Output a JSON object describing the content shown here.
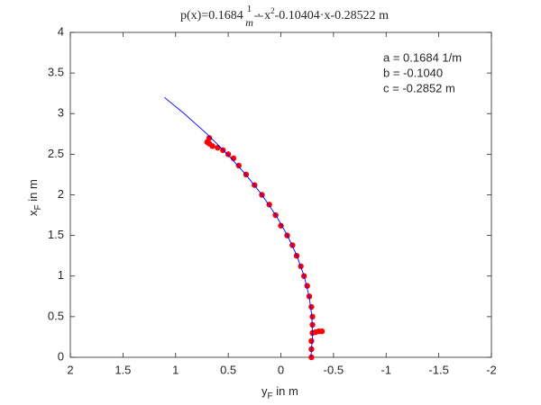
{
  "chart_data": {
    "type": "line",
    "title_parts": [
      "p(x)=0.1684",
      "1",
      "m",
      "· x",
      "2",
      "-0.10404·x-0.28522 m"
    ],
    "xlabel": {
      "main": "y",
      "sub": "F",
      "rest": " in m"
    },
    "ylabel": {
      "main": "x",
      "sub": "F",
      "rest": " in m"
    },
    "annotations": [
      "a = 0.1684 1/m",
      "b = -0.1040",
      "c = -0.2852 m"
    ],
    "xlim": [
      2,
      -2
    ],
    "ylim": [
      0,
      4
    ],
    "xticks": [
      2,
      1.5,
      1,
      0.5,
      0,
      -0.5,
      -1,
      -1.5,
      -2
    ],
    "yticks": [
      0,
      0.5,
      1,
      1.5,
      2,
      2.5,
      3,
      3.5,
      4
    ],
    "grid": false,
    "series": [
      {
        "style": "line",
        "color": "#0000ff",
        "x": [
          -0.2852,
          -0.3007,
          -0.2951,
          -0.2685,
          -0.2208,
          -0.1522,
          -0.0624,
          0.0484,
          0.1803,
          0.3332,
          0.5072,
          0.7022,
          0.9183,
          1.1063
        ],
        "values": [
          0,
          0.25,
          0.5,
          0.75,
          1,
          1.25,
          1.5,
          1.75,
          2,
          2.25,
          2.5,
          2.75,
          3,
          3.2
        ]
      },
      {
        "style": "markers",
        "color": "#ff0000",
        "x": [
          -0.29,
          -0.29,
          -0.29,
          -0.3,
          -0.33,
          -0.36,
          -0.39,
          -0.3,
          -0.3,
          -0.29,
          -0.27,
          -0.25,
          -0.22,
          -0.19,
          -0.15,
          -0.11,
          -0.06,
          0,
          0.05,
          0.11,
          0.18,
          0.25,
          0.33,
          0.4,
          0.45,
          0.5,
          0.55,
          0.6,
          0.65,
          0.68,
          0.7,
          0.68
        ],
        "values": [
          0,
          0.1,
          0.2,
          0.3,
          0.31,
          0.32,
          0.32,
          0.4,
          0.5,
          0.62,
          0.75,
          0.88,
          1,
          1.12,
          1.25,
          1.38,
          1.5,
          1.62,
          1.75,
          1.88,
          2,
          2.12,
          2.25,
          2.36,
          2.45,
          2.5,
          2.55,
          2.58,
          2.6,
          2.63,
          2.65,
          2.7
        ]
      }
    ]
  }
}
